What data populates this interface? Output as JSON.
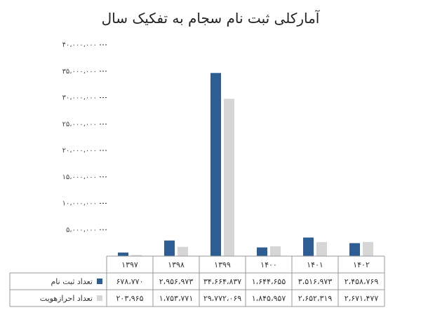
{
  "chart_data": {
    "type": "bar",
    "title": "آمارکلی ثبت نام سجام به تفکیک سال",
    "xlabel": "",
    "ylabel": "",
    "ylim": [
      0,
      40000000
    ],
    "yticks": [
      0,
      5000000,
      10000000,
      15000000,
      20000000,
      25000000,
      30000000,
      35000000,
      40000000
    ],
    "ytick_labels": [
      "",
      "۵،۰۰۰،۰۰۰",
      "۱۰،۰۰۰،۰۰۰",
      "۱۵،۰۰۰،۰۰۰",
      "۲۰،۰۰۰،۰۰۰",
      "۲۵،۰۰۰،۰۰۰",
      "۳۰،۰۰۰،۰۰۰",
      "۳۵،۰۰۰،۰۰۰",
      "۴۰،۰۰۰،۰۰۰"
    ],
    "grid": true,
    "legend": "data table below plot",
    "categories": [
      "۱۳۹۷",
      "۱۳۹۸",
      "۱۳۹۹",
      "۱۴۰۰",
      "۱۴۰۱",
      "۱۴۰۲"
    ],
    "series": [
      {
        "name": "تعداد ثبت نام",
        "color": "#2e5d94",
        "values": [
          678770,
          2956973,
          34664837,
          1644655,
          3516973,
          2458769
        ],
        "labels": [
          "۶۷۸،۷۷۰",
          "۲،۹۵۶،۹۷۳",
          "۳۴،۶۶۴،۸۳۷",
          "۱،۶۴۴،۶۵۵",
          "۳،۵۱۶،۹۷۳",
          "۲،۴۵۸،۷۶۹"
        ]
      },
      {
        "name": "تعداد احرازهویت",
        "color": "#d6d6d6",
        "values": [
          203965,
          1753771,
          29772069,
          1845957,
          2652319,
          2671477
        ],
        "labels": [
          "۲۰۳،۹۶۵",
          "۱،۷۵۳،۷۷۱",
          "۲۹،۷۷۲،۰۶۹",
          "۱،۸۴۵،۹۵۷",
          "۲،۶۵۲،۳۱۹",
          "۲،۶۷۱،۴۷۷"
        ]
      }
    ]
  }
}
